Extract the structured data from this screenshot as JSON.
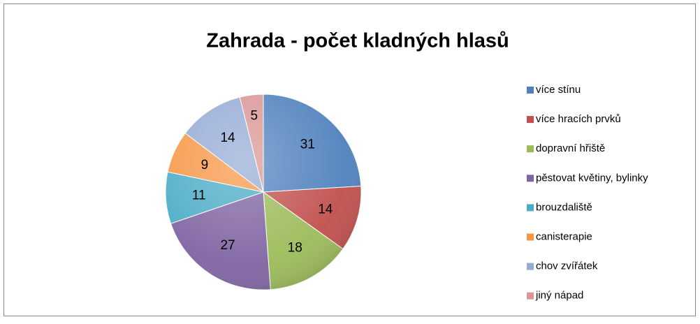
{
  "chart_data": {
    "type": "pie",
    "title": "Zahrada - počet kladných hlasů",
    "categories": [
      "více stínu",
      "více hracích prvků",
      "dopravní hřiště",
      "pěstovat květiny, bylinky",
      "brouzdaliště",
      "canisterapie",
      "chov zvířátek",
      "jiný nápad"
    ],
    "values": [
      31,
      14,
      18,
      27,
      11,
      9,
      14,
      5
    ],
    "colors": [
      "#4f81bd",
      "#c0504d",
      "#9bbb59",
      "#8064a2",
      "#4bacc6",
      "#f79646",
      "#95abd6",
      "#d99694"
    ],
    "legend": "right"
  }
}
